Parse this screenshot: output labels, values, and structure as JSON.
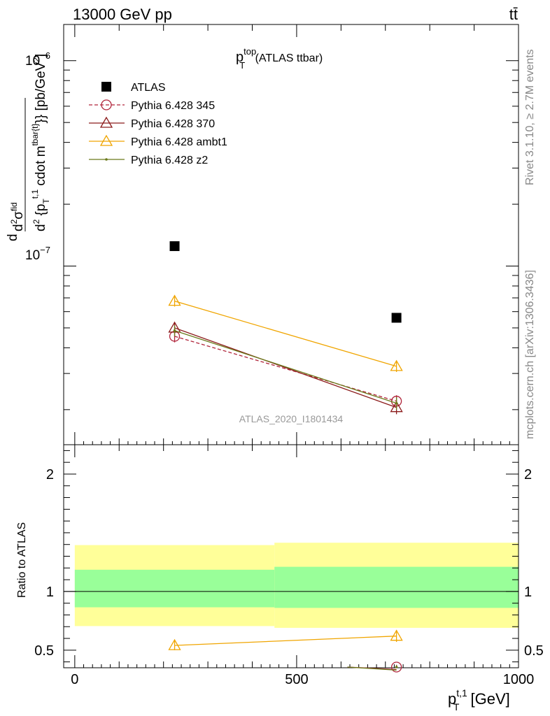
{
  "header": {
    "left": "13000 GeV pp",
    "right": "tt̄"
  },
  "side_text": {
    "rivet": "Rivet 3.1.10, ≥ 2.7M events",
    "mcplots": "mcplots.cern.ch [arXiv:1306.3436]"
  },
  "analysis_id": "ATLAS_2020_I1801434",
  "colors": {
    "atlas": "#000000",
    "p345": "#b0243a",
    "p370": "#8b1a1a",
    "ambt1": "#f0a500",
    "z2": "#6b7a1a",
    "band_inner": "#99ff99",
    "band_outer": "#ffff99"
  },
  "chart_data": [
    {
      "type": "scatter",
      "title_main": "p",
      "title_sup": "top",
      "title_sub": "T",
      "title_rest": " (ATLAS ttbar)",
      "ylabel": "d²σ^fid / d²{p_T^t,1 cdot m^tbar{t}}} [pb/GeV²]",
      "ylabel_parts": {
        "d": "d",
        "num": "d",
        "num_sup": "2",
        "num_sym": "σ",
        "num_sup2": "fid",
        "den": "d",
        "den_sup": "2",
        "den_body": " {p",
        "den_sub": "T",
        "den_sup2": "t,1",
        "den_body2": " cdot m",
        "den_sup3": "tbar{t}",
        "den_tail": "}} [pb/GeV",
        "den_tail_sup": "2",
        "den_tail_end": "]"
      },
      "yscale": "log",
      "ylim": [
        1.35e-08,
        1.5e-06
      ],
      "xlim": [
        -25,
        1000
      ],
      "ytick_labels": [
        {
          "base": "10",
          "exp": "−6",
          "value": 1e-06
        },
        {
          "base": "10",
          "exp": "−7",
          "value": 1e-07
        }
      ],
      "series": [
        {
          "name": "ATLAS",
          "key": "atlas",
          "marker": "square",
          "x": [
            225,
            725
          ],
          "y": [
            1.25e-07,
            5.6e-08
          ],
          "err": [
            0,
            0
          ]
        },
        {
          "name": "Pythia 6.428 345",
          "key": "p345",
          "marker": "circle",
          "dashed": true,
          "x": [
            225,
            725
          ],
          "y": [
            4.55e-08,
            2.2e-08
          ],
          "err": [
            3e-09,
            1.5e-09
          ]
        },
        {
          "name": "Pythia 6.428 370",
          "key": "p370",
          "marker": "triangle",
          "x": [
            225,
            725
          ],
          "y": [
            5e-08,
            2.05e-08
          ],
          "err": [
            3e-09,
            1.5e-09
          ]
        },
        {
          "name": "Pythia 6.428 ambt1",
          "key": "ambt1",
          "marker": "triangle",
          "x": [
            225,
            725
          ],
          "y": [
            6.75e-08,
            3.25e-08
          ],
          "err": [
            4e-09,
            2e-09
          ]
        },
        {
          "name": "Pythia 6.428 z2",
          "key": "z2",
          "marker": "dot",
          "x": [
            225,
            725
          ],
          "y": [
            4.85e-08,
            2.15e-08
          ],
          "err": [
            3e-09,
            1.5e-09
          ]
        }
      ],
      "legend_position": "top-left"
    },
    {
      "type": "scatter",
      "ylabel": "Ratio to ATLAS",
      "xlabel_main": "p",
      "xlabel_sup": "t,1",
      "xlabel_sub": "T",
      "xlabel_rest": " [GeV]",
      "xlim": [
        -25,
        1000
      ],
      "ylim": [
        0.35,
        2.25
      ],
      "xticks": [
        0,
        500,
        1000
      ],
      "yticks": [
        0.5,
        1,
        2
      ],
      "ytick_labels": [
        "0.5",
        "1",
        "2"
      ],
      "bands": [
        {
          "x0": 0,
          "x1": 450,
          "inner": [
            0.865,
            1.185
          ],
          "outer": [
            0.705,
            1.395
          ]
        },
        {
          "x0": 450,
          "x1": 1000,
          "inner": [
            0.86,
            1.21
          ],
          "outer": [
            0.69,
            1.415
          ]
        }
      ],
      "series": [
        {
          "name": "Pythia 6.428 ambt1",
          "key": "ambt1",
          "marker": "triangle",
          "x": [
            225,
            725
          ],
          "y": [
            0.54,
            0.62
          ],
          "err": [
            0.04,
            0.05
          ]
        },
        {
          "name": "Pythia 6.428 345",
          "key": "p345",
          "marker": "circle",
          "x": [
            725
          ],
          "y": [
            0.335
          ],
          "err": [
            0.04
          ]
        },
        {
          "name": "Pythia 6.428 z2",
          "key": "z2",
          "marker": "dot",
          "x": [
            725
          ],
          "y": [
            0.33
          ],
          "err": [
            0.04
          ]
        }
      ]
    }
  ]
}
